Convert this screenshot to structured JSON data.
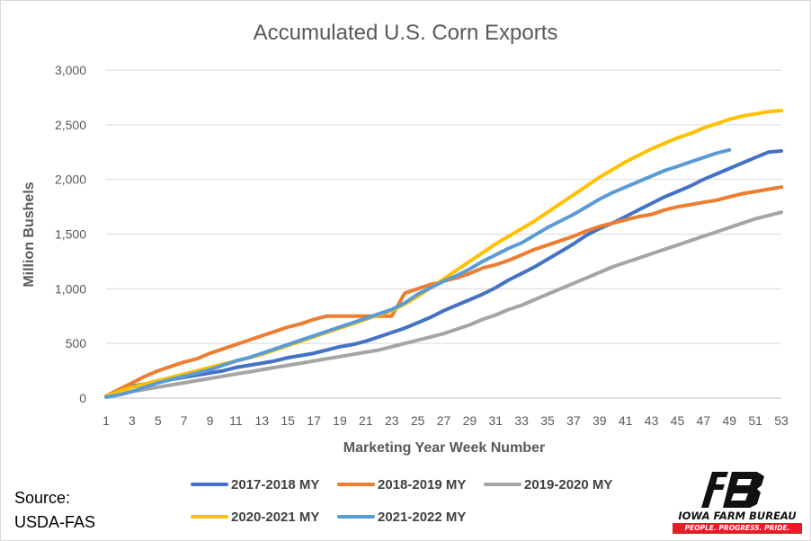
{
  "chart_data": {
    "type": "line",
    "title": "Accumulated U.S. Corn Exports",
    "xlabel": "Marketing Year Week Number",
    "ylabel": "Million Bushels",
    "xlim": [
      1,
      53
    ],
    "ylim": [
      0,
      3000
    ],
    "x_ticks": [
      "1",
      "3",
      "5",
      "7",
      "9",
      "11",
      "13",
      "15",
      "17",
      "19",
      "21",
      "23",
      "25",
      "27",
      "29",
      "31",
      "33",
      "35",
      "37",
      "39",
      "41",
      "43",
      "45",
      "47",
      "49",
      "51",
      "53"
    ],
    "y_ticks": [
      "0",
      "500",
      "1,000",
      "1,500",
      "2,000",
      "2,500",
      "3,000"
    ],
    "grid": "horizontal",
    "legend_position": "bottom",
    "series": [
      {
        "name": "2017-2018 MY",
        "color": "#4472c4",
        "values": [
          20,
          70,
          110,
          130,
          150,
          170,
          190,
          210,
          230,
          250,
          280,
          300,
          320,
          340,
          370,
          390,
          410,
          440,
          470,
          490,
          520,
          560,
          600,
          640,
          690,
          740,
          800,
          850,
          900,
          950,
          1010,
          1080,
          1140,
          1200,
          1270,
          1340,
          1410,
          1490,
          1550,
          1600,
          1660,
          1720,
          1780,
          1840,
          1890,
          1940,
          2000,
          2050,
          2100,
          2150,
          2200,
          2250,
          2260
        ]
      },
      {
        "name": "2018-2019 MY",
        "color": "#ed7d31",
        "values": [
          20,
          80,
          140,
          200,
          250,
          290,
          330,
          360,
          410,
          450,
          490,
          530,
          570,
          610,
          650,
          680,
          720,
          750,
          750,
          750,
          750,
          750,
          750,
          960,
          1000,
          1040,
          1070,
          1100,
          1140,
          1190,
          1220,
          1260,
          1310,
          1360,
          1400,
          1440,
          1480,
          1530,
          1570,
          1600,
          1630,
          1660,
          1680,
          1720,
          1750,
          1770,
          1790,
          1810,
          1840,
          1870,
          1890,
          1910,
          1930
        ]
      },
      {
        "name": "2019-2020 MY",
        "color": "#a5a5a5",
        "values": [
          10,
          40,
          60,
          80,
          100,
          120,
          140,
          160,
          180,
          200,
          220,
          240,
          260,
          280,
          300,
          320,
          340,
          360,
          380,
          400,
          420,
          440,
          470,
          500,
          530,
          560,
          590,
          630,
          670,
          720,
          760,
          810,
          850,
          900,
          950,
          1000,
          1050,
          1100,
          1150,
          1200,
          1240,
          1280,
          1320,
          1360,
          1400,
          1440,
          1480,
          1520,
          1560,
          1600,
          1640,
          1670,
          1700
        ]
      },
      {
        "name": "2020-2021 MY",
        "color": "#ffc000",
        "values": [
          20,
          60,
          100,
          130,
          160,
          190,
          220,
          250,
          280,
          310,
          340,
          370,
          400,
          440,
          480,
          520,
          560,
          600,
          640,
          680,
          720,
          760,
          800,
          860,
          930,
          1010,
          1090,
          1170,
          1250,
          1330,
          1410,
          1480,
          1550,
          1620,
          1700,
          1780,
          1860,
          1940,
          2020,
          2090,
          2160,
          2220,
          2280,
          2330,
          2380,
          2420,
          2470,
          2510,
          2550,
          2580,
          2600,
          2620,
          2630
        ]
      },
      {
        "name": "2021-2022 MY",
        "color": "#5b9bd5",
        "values": [
          10,
          30,
          60,
          100,
          140,
          170,
          200,
          230,
          260,
          300,
          340,
          370,
          410,
          450,
          490,
          530,
          570,
          610,
          650,
          690,
          730,
          770,
          810,
          870,
          950,
          1010,
          1070,
          1120,
          1180,
          1250,
          1310,
          1370,
          1420,
          1490,
          1560,
          1620,
          1680,
          1750,
          1820,
          1880,
          1930,
          1980,
          2030,
          2080,
          2120,
          2160,
          2200,
          2240,
          2270
        ]
      }
    ]
  },
  "source_label": "Source:",
  "source_value": "USDA-FAS",
  "logo": {
    "org_name": "IOWA FARM BUREAU",
    "tagline": "PEOPLE. PROGRESS. PRIDE.",
    "color": "#e21e26"
  }
}
